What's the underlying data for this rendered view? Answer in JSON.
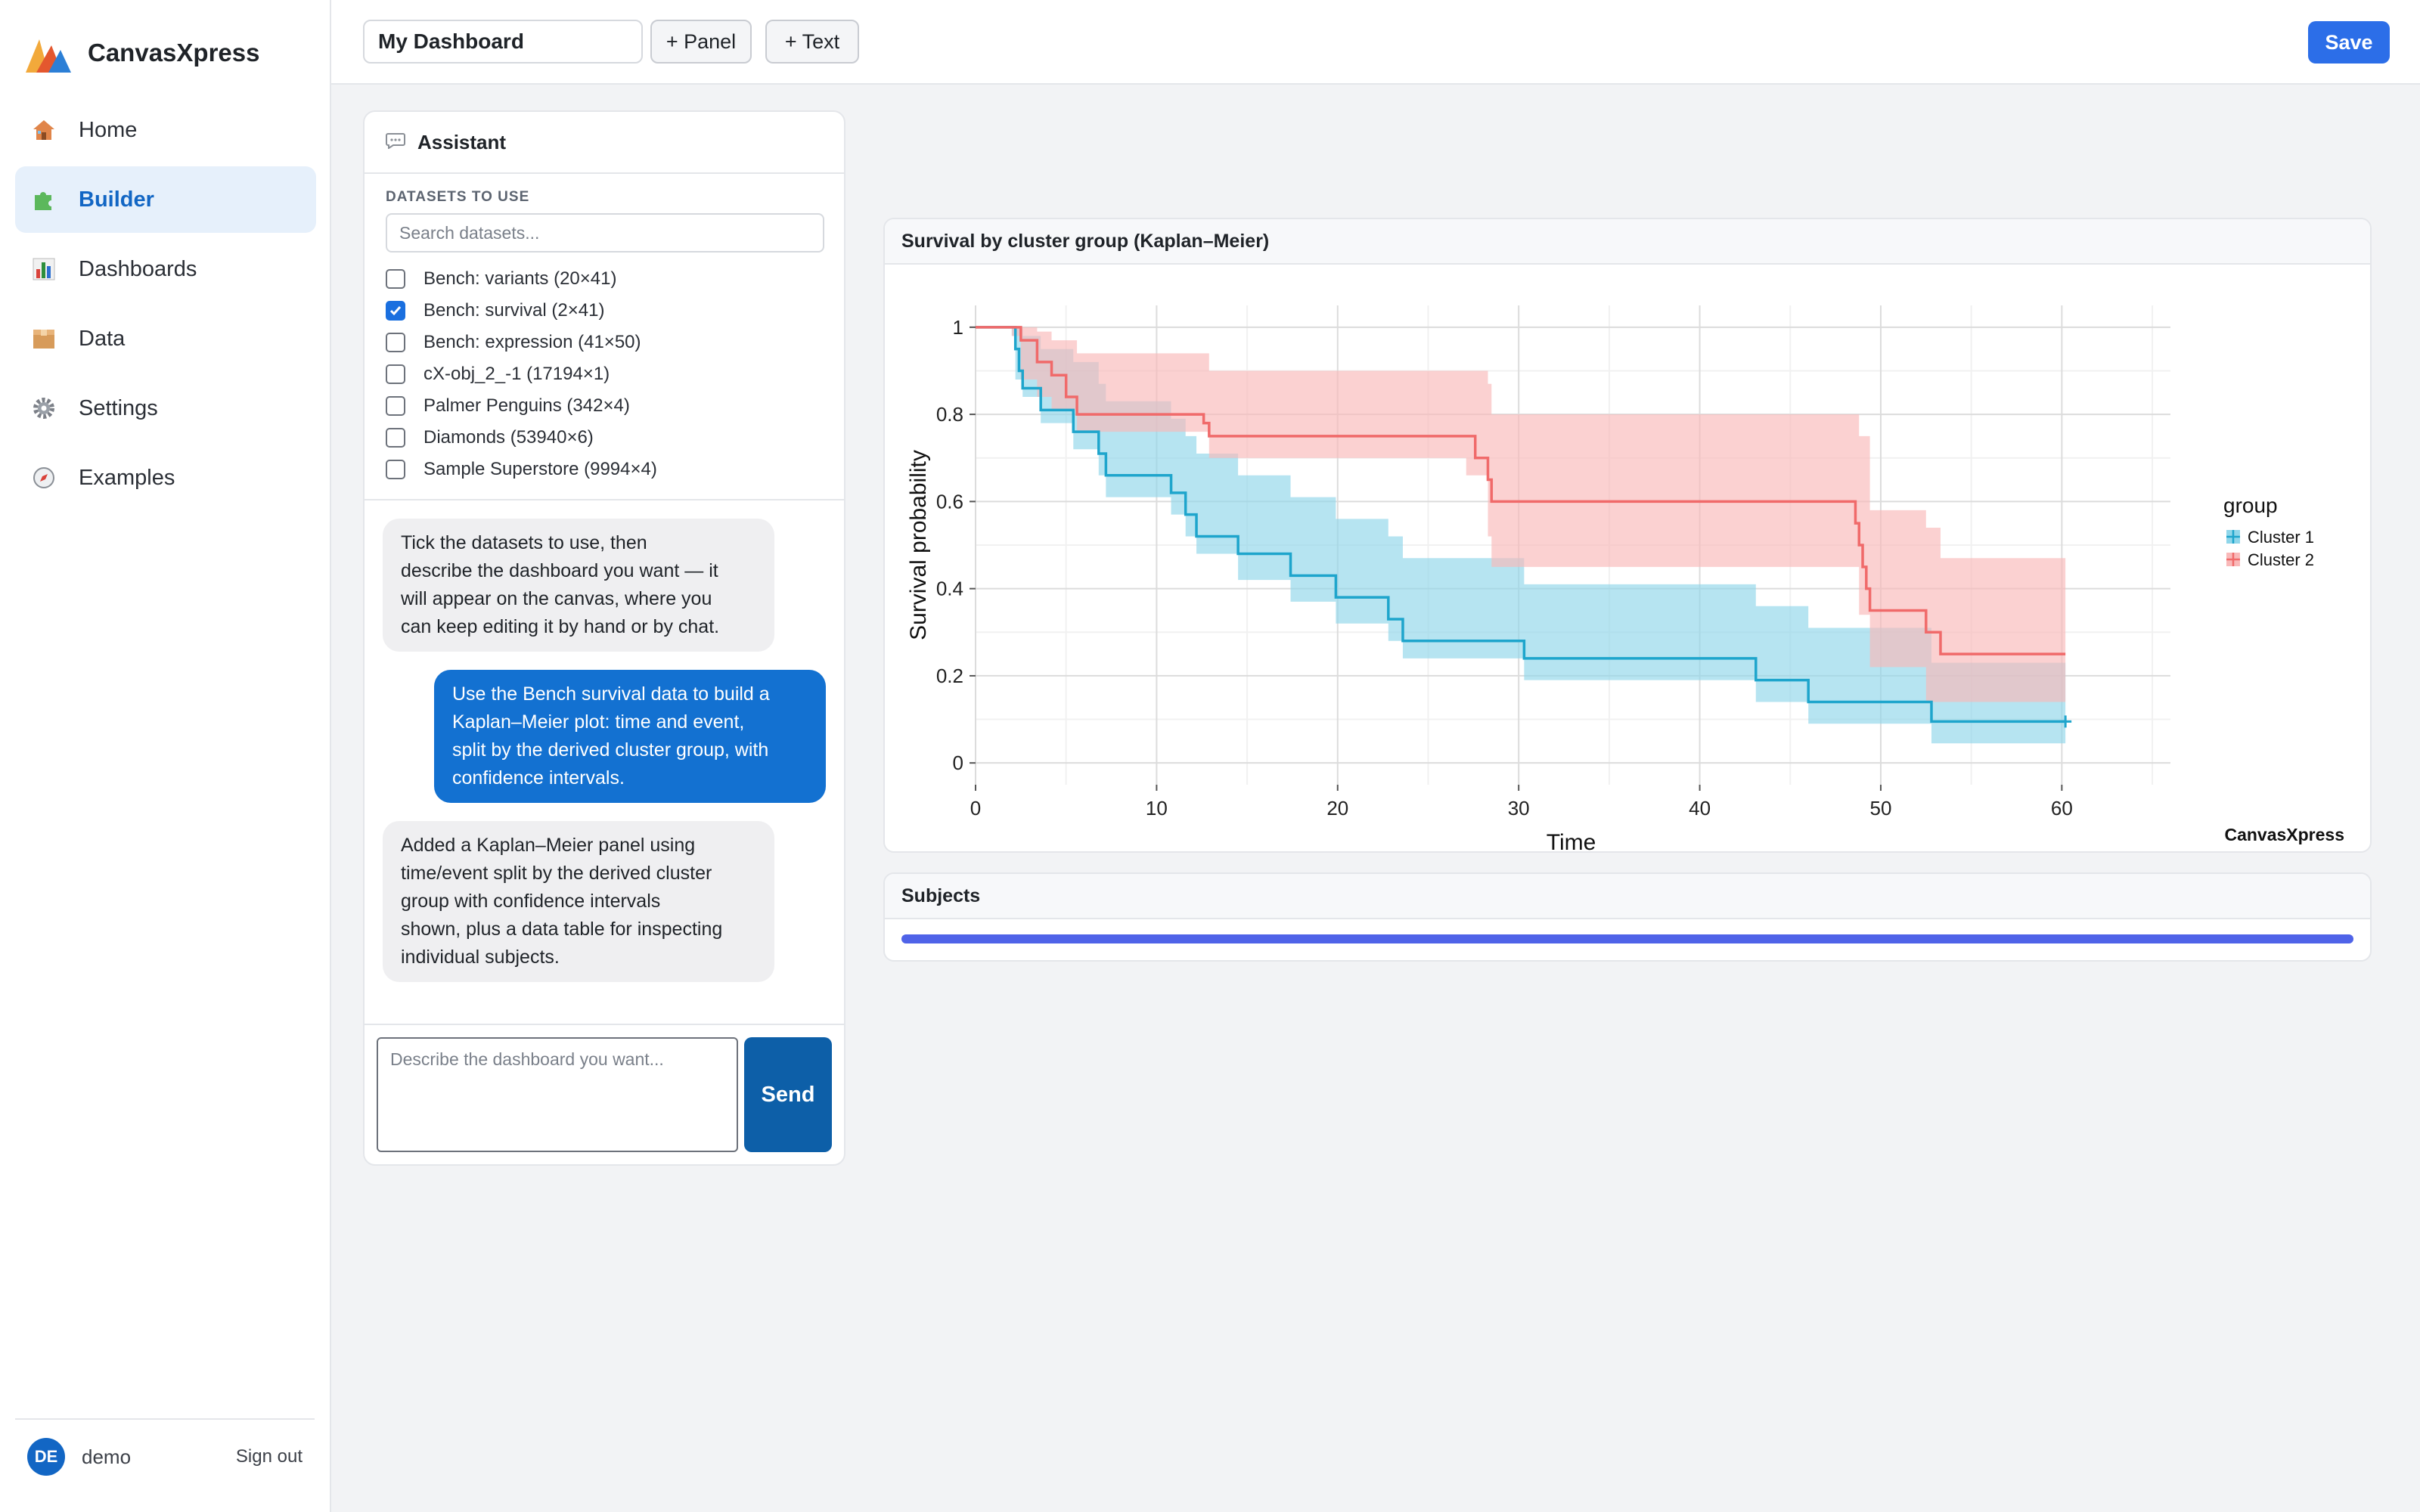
{
  "app": {
    "name": "CanvasXpress"
  },
  "sidebar": {
    "items": [
      {
        "label": "Home",
        "icon": "house-icon"
      },
      {
        "label": "Builder",
        "icon": "puzzle-icon",
        "active": true
      },
      {
        "label": "Dashboards",
        "icon": "bar-chart-icon"
      },
      {
        "label": "Data",
        "icon": "box-icon"
      },
      {
        "label": "Settings",
        "icon": "gear-icon"
      },
      {
        "label": "Examples",
        "icon": "compass-icon"
      }
    ],
    "user": {
      "initials": "DE",
      "name": "demo",
      "signout_label": "Sign out"
    }
  },
  "toolbar": {
    "dashboard_title": "My Dashboard",
    "add_panel_label": "+ Panel",
    "add_text_label": "+ Text",
    "save_label": "Save"
  },
  "assistant": {
    "title": "Assistant",
    "datasets_label": "DATASETS TO USE",
    "search_placeholder": "Search datasets...",
    "datasets": [
      {
        "label": "Bench: variants (20×41)",
        "checked": false
      },
      {
        "label": "Bench: survival (2×41)",
        "checked": true
      },
      {
        "label": "Bench: expression (41×50)",
        "checked": false
      },
      {
        "label": "cX-obj_2_-1 (17194×1)",
        "checked": false
      },
      {
        "label": "Palmer Penguins (342×4)",
        "checked": false
      },
      {
        "label": "Diamonds (53940×6)",
        "checked": false
      },
      {
        "label": "Sample Superstore (9994×4)",
        "checked": false
      }
    ],
    "messages": [
      {
        "role": "assistant",
        "lines": [
          "Tick the datasets to use, then",
          "describe the dashboard you want — it",
          "will appear on the canvas, where you",
          "can keep editing it by hand or by chat."
        ]
      },
      {
        "role": "user",
        "lines": [
          "Use the Bench survival data to build a",
          "Kaplan–Meier plot: time and event,",
          "split by the derived cluster group, with",
          "confidence intervals."
        ]
      },
      {
        "role": "assistant",
        "lines": [
          "Added a Kaplan–Meier panel using",
          "time/event split by the derived cluster",
          "group with confidence intervals",
          "shown, plus a data table for inspecting",
          "individual subjects."
        ]
      }
    ],
    "input_placeholder": "Describe the dashboard you want...",
    "send_label": "Send"
  },
  "panels": {
    "chart_title": "Survival by cluster group (Kaplan–Meier)",
    "subjects_title": "Subjects",
    "subjects_progress": 1.0
  },
  "chart_data": {
    "type": "line",
    "subtype": "kaplan-meier step with confidence bands",
    "title": "",
    "xlabel": "Time",
    "ylabel": "Survival probability",
    "xlim": [
      0,
      66
    ],
    "ylim": [
      -0.05,
      1.05
    ],
    "x_ticks": [
      0,
      10,
      20,
      30,
      40,
      50,
      60
    ],
    "y_ticks": [
      0,
      0.2,
      0.4,
      0.6,
      0.8,
      1
    ],
    "y_tick_labels": [
      "0",
      "0.2",
      "0.4",
      "0.6",
      "0.8",
      "1"
    ],
    "grid": true,
    "legend": {
      "title": "group",
      "position": "right"
    },
    "watermark": "CanvasXpress",
    "series": [
      {
        "name": "Cluster 1",
        "color": "#1ea5cc",
        "band_color": "#8fd6ea",
        "steps": [
          [
            0,
            1
          ],
          [
            2,
            1
          ],
          [
            2.2,
            0.95
          ],
          [
            2.4,
            0.9
          ],
          [
            2.6,
            0.86
          ],
          [
            3.6,
            0.81
          ],
          [
            5.4,
            0.76
          ],
          [
            6.8,
            0.71
          ],
          [
            7.2,
            0.66
          ],
          [
            10.8,
            0.62
          ],
          [
            11.6,
            0.57
          ],
          [
            12.2,
            0.52
          ],
          [
            14.5,
            0.48
          ],
          [
            17.4,
            0.43
          ],
          [
            19.9,
            0.38
          ],
          [
            22.8,
            0.33
          ],
          [
            23.6,
            0.28
          ],
          [
            30.3,
            0.24
          ],
          [
            43.1,
            0.19
          ],
          [
            46.0,
            0.14
          ],
          [
            52.8,
            0.095
          ],
          [
            60.2,
            0.095
          ]
        ],
        "band": [
          [
            0,
            1,
            1
          ],
          [
            2,
            0.98,
            1
          ],
          [
            2.2,
            0.88,
            1
          ],
          [
            2.6,
            0.84,
            0.98
          ],
          [
            3.6,
            0.78,
            0.95
          ],
          [
            5.4,
            0.72,
            0.92
          ],
          [
            6.8,
            0.66,
            0.87
          ],
          [
            7.2,
            0.61,
            0.83
          ],
          [
            10.8,
            0.57,
            0.79
          ],
          [
            11.6,
            0.52,
            0.75
          ],
          [
            12.2,
            0.48,
            0.71
          ],
          [
            14.5,
            0.42,
            0.66
          ],
          [
            17.4,
            0.37,
            0.61
          ],
          [
            19.9,
            0.32,
            0.56
          ],
          [
            22.8,
            0.28,
            0.52
          ],
          [
            23.6,
            0.24,
            0.47
          ],
          [
            30.3,
            0.19,
            0.41
          ],
          [
            43.1,
            0.14,
            0.36
          ],
          [
            46.0,
            0.09,
            0.31
          ],
          [
            52.8,
            0.045,
            0.23
          ],
          [
            60.2,
            0.045,
            0.23
          ]
        ],
        "censor_x": [
          60.2
        ]
      },
      {
        "name": "Cluster 2",
        "color": "#f06a6a",
        "band_color": "#f9b9b9",
        "steps": [
          [
            0,
            1
          ],
          [
            2,
            1
          ],
          [
            2.5,
            0.97
          ],
          [
            3.4,
            0.92
          ],
          [
            4.2,
            0.89
          ],
          [
            5.0,
            0.84
          ],
          [
            5.6,
            0.8
          ],
          [
            12.2,
            0.8
          ],
          [
            12.6,
            0.78
          ],
          [
            12.9,
            0.75
          ],
          [
            27.1,
            0.75
          ],
          [
            27.6,
            0.7
          ],
          [
            28.3,
            0.65
          ],
          [
            28.5,
            0.6
          ],
          [
            48.4,
            0.6
          ],
          [
            48.6,
            0.55
          ],
          [
            48.8,
            0.5
          ],
          [
            49.0,
            0.45
          ],
          [
            49.2,
            0.4
          ],
          [
            49.4,
            0.35
          ],
          [
            52.5,
            0.3
          ],
          [
            53.3,
            0.25
          ],
          [
            60.2,
            0.25
          ]
        ],
        "band": [
          [
            0,
            1,
            1
          ],
          [
            2,
            0.98,
            1
          ],
          [
            2.5,
            0.88,
            1
          ],
          [
            3.4,
            0.84,
            0.99
          ],
          [
            4.2,
            0.81,
            0.97
          ],
          [
            5.6,
            0.76,
            0.94
          ],
          [
            12.9,
            0.7,
            0.9
          ],
          [
            27.1,
            0.66,
            0.9
          ],
          [
            28.3,
            0.52,
            0.87
          ],
          [
            28.5,
            0.45,
            0.8
          ],
          [
            48.4,
            0.45,
            0.8
          ],
          [
            48.8,
            0.34,
            0.75
          ],
          [
            49.4,
            0.22,
            0.58
          ],
          [
            52.5,
            0.14,
            0.54
          ],
          [
            53.3,
            0.14,
            0.47
          ],
          [
            60.2,
            0.14,
            0.47
          ]
        ],
        "censor_x": []
      }
    ]
  }
}
